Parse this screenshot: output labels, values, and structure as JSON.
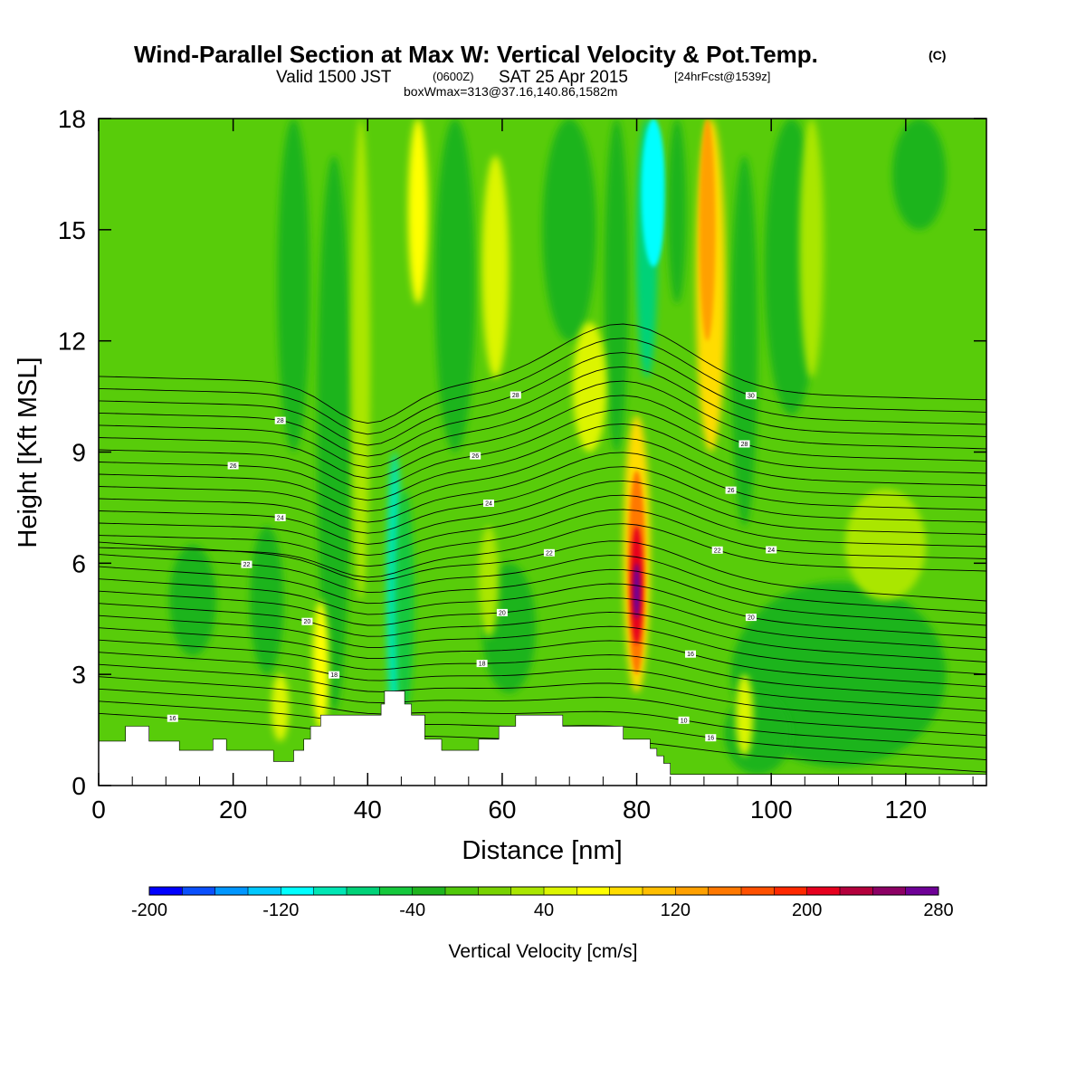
{
  "colors": {
    "base_field": "#58cc0a",
    "terrain": "#ffffff",
    "contour": "#000000"
  },
  "chart_data": {
    "type": "heatmap",
    "title": "Wind-Parallel Section at Max W: Vertical Velocity & Pot.Temp.",
    "title_mark": "(C)",
    "subtitle": {
      "valid": "Valid 1500 JST",
      "utc": "(0600Z)",
      "date": "SAT 25 Apr 2015",
      "forecast": "[24hrFcst@1539z]"
    },
    "subtitle2": "boxWmax=313@37.16,140.86,1582m",
    "xlabel": "Distance [nm]",
    "ylabel": "Height [Kft MSL]",
    "xlim": [
      0,
      132
    ],
    "ylim": [
      0,
      18
    ],
    "x_ticks": [
      0,
      20,
      40,
      60,
      80,
      100,
      120
    ],
    "y_ticks": [
      0,
      3,
      6,
      9,
      12,
      15,
      18
    ],
    "colorbar": {
      "title": "Vertical Velocity [cm/s]",
      "min": -200,
      "max": 280,
      "step": 20,
      "tick_values": [
        -200,
        -120,
        -40,
        40,
        120,
        200,
        280
      ],
      "tick_labels": [
        "-200",
        "-120",
        "-40",
        "40",
        "120",
        "200",
        "280"
      ],
      "colors": [
        "#0000ff",
        "#0a4ffd",
        "#0096ff",
        "#00c8ff",
        "#00ffff",
        "#00e6b4",
        "#00d278",
        "#14c83c",
        "#1eb41e",
        "#50c80a",
        "#78d200",
        "#aae600",
        "#dcf500",
        "#ffff00",
        "#ffdc00",
        "#ffbe00",
        "#ffa000",
        "#ff7800",
        "#ff5000",
        "#ff2800",
        "#e6001e",
        "#b4003c",
        "#8c0064",
        "#6e0096"
      ]
    },
    "velocity_features": [
      {
        "x": 44,
        "y0": 1.5,
        "y1": 9,
        "w": 1.2,
        "value": -100
      },
      {
        "x": 45.5,
        "y0": 2,
        "y1": 8,
        "w": 1.4,
        "value": -60
      },
      {
        "x": 35,
        "y0": 2,
        "y1": 17,
        "w": 2.5,
        "value": -30
      },
      {
        "x": 29,
        "y0": 9,
        "y1": 18,
        "w": 2.4,
        "value": -40
      },
      {
        "x": 25,
        "y0": 3,
        "y1": 7,
        "w": 2.5,
        "value": -40
      },
      {
        "x": 14,
        "y0": 3.5,
        "y1": 6.5,
        "w": 3.5,
        "value": -30
      },
      {
        "x": 53,
        "y0": 9,
        "y1": 18,
        "w": 3,
        "value": -40
      },
      {
        "x": 61,
        "y0": 2.5,
        "y1": 6,
        "w": 4,
        "value": -30
      },
      {
        "x": 70,
        "y0": 12,
        "y1": 18,
        "w": 4,
        "value": -30
      },
      {
        "x": 77,
        "y0": 9,
        "y1": 18,
        "w": 1.8,
        "value": -40
      },
      {
        "x": 81.5,
        "y0": 11,
        "y1": 18,
        "w": 1.6,
        "value": -80
      },
      {
        "x": 82.5,
        "y0": 14,
        "y1": 18,
        "w": 1.8,
        "value": -120
      },
      {
        "x": 86,
        "y0": 13,
        "y1": 18,
        "w": 1.4,
        "value": -40
      },
      {
        "x": 96,
        "y0": 7,
        "y1": 17,
        "w": 2,
        "value": -40
      },
      {
        "x": 103,
        "y0": 10,
        "y1": 18,
        "w": 4,
        "value": -30
      },
      {
        "x": 122,
        "y0": 15,
        "y1": 18,
        "w": 4,
        "value": -30
      },
      {
        "x": 110,
        "y0": 0.5,
        "y1": 5.5,
        "w": 16,
        "value": -30
      },
      {
        "x": 98,
        "y0": 0.3,
        "y1": 2.5,
        "w": 5,
        "value": -40
      },
      {
        "x": 39,
        "y0": 5,
        "y1": 18,
        "w": 1.4,
        "value": 30
      },
      {
        "x": 47.5,
        "y0": 13,
        "y1": 18,
        "w": 1.5,
        "value": 60
      },
      {
        "x": 33,
        "y0": 1.5,
        "y1": 5,
        "w": 1.2,
        "value": 60
      },
      {
        "x": 27,
        "y0": 1.2,
        "y1": 3,
        "w": 1.3,
        "value": 40
      },
      {
        "x": 59,
        "y0": 11,
        "y1": 17,
        "w": 2,
        "value": 40
      },
      {
        "x": 58,
        "y0": 4,
        "y1": 7,
        "w": 1.5,
        "value": 30
      },
      {
        "x": 73,
        "y0": 9,
        "y1": 12.5,
        "w": 2.5,
        "value": 40
      },
      {
        "x": 91,
        "y0": 9,
        "y1": 18,
        "w": 2.2,
        "value": 80
      },
      {
        "x": 90.5,
        "y0": 12,
        "y1": 18,
        "w": 1.2,
        "value": 120
      },
      {
        "x": 106,
        "y0": 11,
        "y1": 18,
        "w": 1.8,
        "value": 30
      },
      {
        "x": 117,
        "y0": 5,
        "y1": 8,
        "w": 6,
        "value": 20
      },
      {
        "x": 96,
        "y0": 0.8,
        "y1": 3,
        "w": 1.3,
        "value": 40
      },
      {
        "x": 80,
        "y0": 2.5,
        "y1": 10,
        "w": 2,
        "value": 80
      },
      {
        "x": 80,
        "y0": 3,
        "y1": 8.5,
        "w": 1.3,
        "value": 140
      },
      {
        "x": 80,
        "y0": 3.8,
        "y1": 7,
        "w": 0.9,
        "value": 210
      },
      {
        "x": 80,
        "y0": 4.5,
        "y1": 6,
        "w": 0.5,
        "value": 260
      }
    ],
    "terrain_profile": [
      [
        0,
        1.2
      ],
      [
        4,
        1.2
      ],
      [
        4,
        1.6
      ],
      [
        7.5,
        1.6
      ],
      [
        7.5,
        1.2
      ],
      [
        12,
        1.2
      ],
      [
        12,
        0.95
      ],
      [
        17,
        0.95
      ],
      [
        17,
        1.25
      ],
      [
        19,
        1.25
      ],
      [
        19,
        0.95
      ],
      [
        26,
        0.95
      ],
      [
        26,
        0.65
      ],
      [
        29,
        0.65
      ],
      [
        29,
        0.95
      ],
      [
        30.5,
        0.95
      ],
      [
        30.5,
        1.25
      ],
      [
        31.5,
        1.25
      ],
      [
        31.5,
        1.6
      ],
      [
        33,
        1.6
      ],
      [
        33,
        1.9
      ],
      [
        42,
        1.9
      ],
      [
        42,
        2.2
      ],
      [
        42.5,
        2.2
      ],
      [
        42.5,
        2.55
      ],
      [
        45.5,
        2.55
      ],
      [
        45.5,
        2.2
      ],
      [
        46.5,
        2.2
      ],
      [
        46.5,
        1.9
      ],
      [
        48.5,
        1.9
      ],
      [
        48.5,
        1.25
      ],
      [
        51,
        1.25
      ],
      [
        51,
        0.95
      ],
      [
        56.5,
        0.95
      ],
      [
        56.5,
        1.25
      ],
      [
        59.5,
        1.25
      ],
      [
        59.5,
        1.6
      ],
      [
        62,
        1.6
      ],
      [
        62,
        1.9
      ],
      [
        69,
        1.9
      ],
      [
        69,
        1.6
      ],
      [
        78,
        1.6
      ],
      [
        78,
        1.25
      ],
      [
        82,
        1.25
      ],
      [
        82,
        1
      ],
      [
        83,
        1
      ],
      [
        83,
        0.8
      ],
      [
        84,
        0.8
      ],
      [
        84,
        0.6
      ],
      [
        85,
        0.6
      ],
      [
        85,
        0.3
      ],
      [
        132,
        0.3
      ]
    ],
    "theta_contours": [
      {
        "base": 16.4,
        "label": "16",
        "lx": 11
      },
      {
        "base": 17.0,
        "label": "16",
        "lx": 91
      },
      {
        "base": 17.6,
        "label": "10",
        "lx": 87
      },
      {
        "base": 18.2
      },
      {
        "base": 18.8
      },
      {
        "base": 19.4,
        "label": "18",
        "lx": 35
      },
      {
        "base": 20.0,
        "label": "18",
        "lx": 57
      },
      {
        "base": 20.6,
        "label": "16",
        "lx": 88
      },
      {
        "base": 21.2
      },
      {
        "base": 21.8,
        "label": "20",
        "lx": 31
      },
      {
        "base": 22.4,
        "label": "20",
        "lx": 60
      },
      {
        "base": 23.0,
        "label": "20",
        "lx": 97
      },
      {
        "base": 23.6
      },
      {
        "base": 24.2,
        "label": "22",
        "lx": 22
      },
      {
        "base": 24.8,
        "label": "22",
        "lx": 67
      },
      {
        "base": 25.4,
        "label": "22",
        "lx": 92
      },
      {
        "base": 26.0,
        "label": "24",
        "lx": 100
      },
      {
        "base": 26.6
      },
      {
        "base": 27.2,
        "label": "24",
        "lx": 27
      },
      {
        "base": 27.8,
        "label": "24",
        "lx": 58
      },
      {
        "base": 28.4,
        "label": "26",
        "lx": 94
      },
      {
        "base": 29.0
      },
      {
        "base": 29.6,
        "label": "26",
        "lx": 20
      },
      {
        "base": 30.2,
        "label": "26",
        "lx": 56
      },
      {
        "base": 30.8,
        "label": "28",
        "lx": 96
      },
      {
        "base": 31.4
      },
      {
        "base": 32.0,
        "label": "28",
        "lx": 27
      },
      {
        "base": 32.6,
        "label": "28",
        "lx": 62
      },
      {
        "base": 33.2,
        "label": "30",
        "lx": 97
      },
      {
        "base": 33.8
      }
    ]
  }
}
